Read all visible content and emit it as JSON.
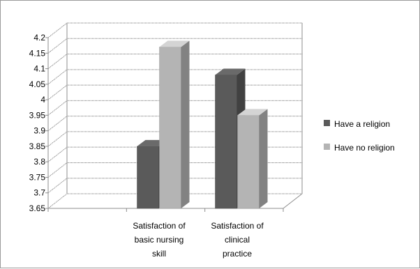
{
  "chart_data": {
    "type": "bar",
    "title": "",
    "xlabel": "",
    "ylabel": "",
    "categories": [
      [
        "Satisfaction of",
        "basic nursing",
        "skill"
      ],
      [
        "Satisfaction of",
        "clinical",
        "practice"
      ]
    ],
    "series": [
      {
        "name": "Have a religion",
        "values": [
          3.85,
          4.08
        ],
        "color": "#5a5a5a"
      },
      {
        "name": "Have no religion",
        "values": [
          4.17,
          3.95
        ],
        "color": "#b4b4b4"
      }
    ],
    "ylim": [
      3.65,
      4.2
    ],
    "ytick_labels": [
      "3.65",
      "3.7",
      "3.75",
      "3.8",
      "3.85",
      "3.9",
      "3.95",
      "4",
      "4.05",
      "4.1",
      "4.15",
      "4.2"
    ],
    "legend_position": "right",
    "grid": true,
    "style": "3d-clustered-column"
  }
}
